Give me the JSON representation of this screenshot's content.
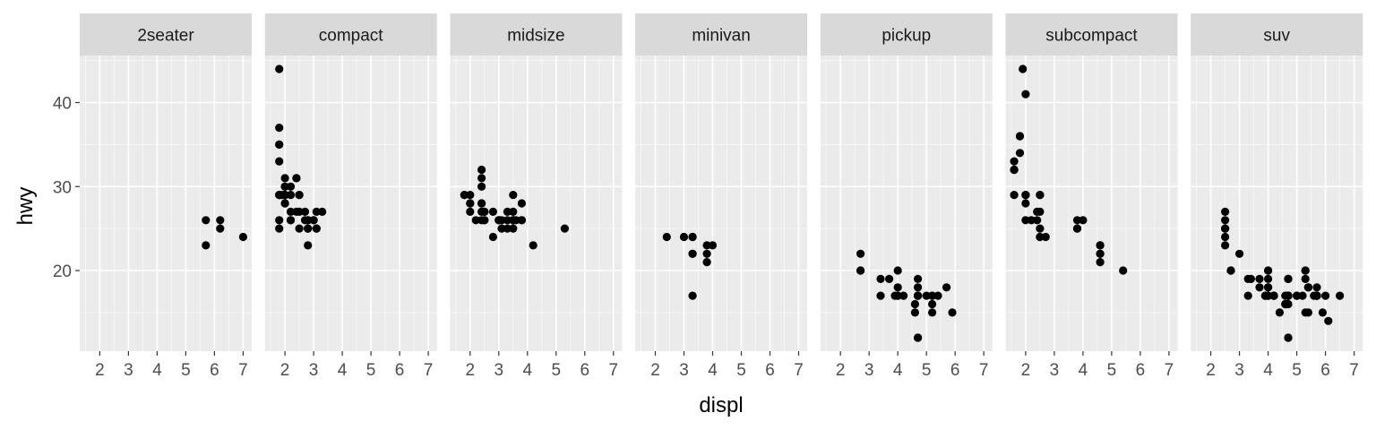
{
  "chart_data": {
    "type": "scatter",
    "xlabel": "displ",
    "ylabel": "hwy",
    "xlim": [
      1.3,
      7.3
    ],
    "ylim": [
      10.4,
      45.6
    ],
    "x_ticks": [
      2,
      3,
      4,
      5,
      6,
      7
    ],
    "y_ticks": [
      20,
      30,
      40
    ],
    "grid": true,
    "colors": {
      "panel": "#ebebeb",
      "strip": "#d9d9d9",
      "grid_major": "#ffffff",
      "point": "#000000",
      "tick_text": "#4d4d4d"
    },
    "facets": [
      {
        "label": "2seater",
        "points": [
          [
            5.7,
            26
          ],
          [
            5.7,
            23
          ],
          [
            6.2,
            26
          ],
          [
            6.2,
            25
          ],
          [
            7.0,
            24
          ]
        ]
      },
      {
        "label": "compact",
        "points": [
          [
            1.8,
            29
          ],
          [
            1.8,
            29
          ],
          [
            2.0,
            31
          ],
          [
            2.0,
            30
          ],
          [
            2.8,
            26
          ],
          [
            2.8,
            26
          ],
          [
            3.1,
            27
          ],
          [
            1.8,
            26
          ],
          [
            1.8,
            25
          ],
          [
            2.0,
            28
          ],
          [
            2.0,
            29
          ],
          [
            2.8,
            25
          ],
          [
            2.8,
            25
          ],
          [
            3.1,
            25
          ],
          [
            3.1,
            25
          ],
          [
            2.2,
            27
          ],
          [
            2.2,
            29
          ],
          [
            2.4,
            31
          ],
          [
            2.4,
            31
          ],
          [
            3.0,
            26
          ],
          [
            3.0,
            26
          ],
          [
            3.3,
            27
          ],
          [
            1.8,
            29
          ],
          [
            1.8,
            37
          ],
          [
            1.8,
            35
          ],
          [
            1.8,
            44
          ],
          [
            1.9,
            29
          ],
          [
            2.0,
            29
          ],
          [
            2.0,
            29
          ],
          [
            2.0,
            29
          ],
          [
            2.5,
            29
          ],
          [
            2.5,
            29
          ],
          [
            2.8,
            23
          ],
          [
            1.8,
            33
          ],
          [
            1.8,
            35
          ],
          [
            2.0,
            28
          ],
          [
            2.0,
            30
          ],
          [
            2.7,
            26
          ],
          [
            2.7,
            27
          ],
          [
            2.2,
            26
          ],
          [
            2.4,
            27
          ],
          [
            3.0,
            26
          ],
          [
            2.2,
            30
          ],
          [
            2.2,
            26
          ],
          [
            2.5,
            25
          ],
          [
            2.5,
            27
          ]
        ]
      },
      {
        "label": "midsize",
        "points": [
          [
            2.8,
            24
          ],
          [
            3.1,
            25
          ],
          [
            4.2,
            23
          ],
          [
            2.4,
            30
          ],
          [
            2.4,
            27
          ],
          [
            3.1,
            26
          ],
          [
            3.5,
            29
          ],
          [
            3.6,
            26
          ],
          [
            2.5,
            26
          ],
          [
            2.5,
            27
          ],
          [
            3.3,
            26
          ],
          [
            3.3,
            25
          ],
          [
            3.5,
            26
          ],
          [
            3.5,
            26
          ],
          [
            3.8,
            26
          ],
          [
            3.8,
            28
          ],
          [
            3.8,
            26
          ],
          [
            5.3,
            25
          ],
          [
            2.5,
            26
          ],
          [
            2.5,
            27
          ],
          [
            3.0,
            26
          ],
          [
            3.0,
            26
          ],
          [
            3.5,
            26
          ],
          [
            1.8,
            29
          ],
          [
            1.8,
            29
          ],
          [
            2.0,
            28
          ],
          [
            2.0,
            29
          ],
          [
            2.4,
            26
          ],
          [
            2.4,
            28
          ],
          [
            3.5,
            25
          ],
          [
            2.4,
            32
          ],
          [
            2.4,
            31
          ],
          [
            3.0,
            26
          ],
          [
            3.3,
            27
          ],
          [
            2.0,
            28
          ],
          [
            2.0,
            27
          ],
          [
            2.2,
            26
          ],
          [
            2.4,
            28
          ],
          [
            3.5,
            27
          ],
          [
            2.8,
            27
          ]
        ]
      },
      {
        "label": "minivan",
        "points": [
          [
            2.4,
            24
          ],
          [
            3.0,
            24
          ],
          [
            3.3,
            22
          ],
          [
            3.3,
            22
          ],
          [
            3.3,
            24
          ],
          [
            3.3,
            24
          ],
          [
            3.3,
            17
          ],
          [
            3.8,
            22
          ],
          [
            3.8,
            21
          ],
          [
            3.8,
            23
          ],
          [
            4.0,
            23
          ]
        ]
      },
      {
        "label": "pickup",
        "points": [
          [
            2.7,
            20
          ],
          [
            2.7,
            20
          ],
          [
            2.7,
            22
          ],
          [
            3.4,
            17
          ],
          [
            3.4,
            19
          ],
          [
            4.0,
            18
          ],
          [
            4.7,
            17
          ],
          [
            4.7,
            12
          ],
          [
            4.7,
            17
          ],
          [
            5.2,
            17
          ],
          [
            5.2,
            15
          ],
          [
            3.9,
            17
          ],
          [
            4.7,
            17
          ],
          [
            4.7,
            12
          ],
          [
            4.7,
            17
          ],
          [
            5.2,
            16
          ],
          [
            5.7,
            18
          ],
          [
            5.9,
            15
          ],
          [
            4.0,
            20
          ],
          [
            4.0,
            17
          ],
          [
            4.0,
            17
          ],
          [
            4.6,
            16
          ],
          [
            5.0,
            17
          ],
          [
            5.4,
            17
          ],
          [
            4.6,
            15
          ],
          [
            4.7,
            18
          ],
          [
            4.7,
            19
          ],
          [
            5.2,
            17
          ],
          [
            3.7,
            19
          ],
          [
            4.2,
            17
          ]
        ]
      },
      {
        "label": "subcompact",
        "points": [
          [
            3.8,
            26
          ],
          [
            3.8,
            25
          ],
          [
            4.0,
            26
          ],
          [
            4.6,
            23
          ],
          [
            4.6,
            22
          ],
          [
            4.6,
            23
          ],
          [
            4.6,
            22
          ],
          [
            5.4,
            20
          ],
          [
            1.6,
            33
          ],
          [
            1.6,
            32
          ],
          [
            1.6,
            32
          ],
          [
            1.6,
            29
          ],
          [
            1.6,
            32
          ],
          [
            1.8,
            34
          ],
          [
            1.8,
            36
          ],
          [
            1.8,
            36
          ],
          [
            2.0,
            29
          ],
          [
            2.4,
            26
          ],
          [
            2.4,
            27
          ],
          [
            2.5,
            25
          ],
          [
            2.5,
            27
          ],
          [
            2.5,
            29
          ],
          [
            2.5,
            29
          ],
          [
            1.9,
            44
          ],
          [
            2.0,
            41
          ],
          [
            2.0,
            29
          ],
          [
            2.0,
            26
          ],
          [
            2.0,
            28
          ],
          [
            2.0,
            29
          ],
          [
            2.5,
            24
          ],
          [
            3.8,
            25
          ],
          [
            4.6,
            21
          ],
          [
            2.5,
            24
          ],
          [
            2.2,
            26
          ],
          [
            2.7,
            24
          ]
        ]
      },
      {
        "label": "suv",
        "points": [
          [
            5.3,
            20
          ],
          [
            5.3,
            15
          ],
          [
            5.3,
            20
          ],
          [
            5.7,
            17
          ],
          [
            6.0,
            17
          ],
          [
            5.7,
            17
          ],
          [
            6.5,
            17
          ],
          [
            3.7,
            19
          ],
          [
            3.7,
            18
          ],
          [
            3.9,
            17
          ],
          [
            3.9,
            17
          ],
          [
            4.7,
            17
          ],
          [
            4.7,
            12
          ],
          [
            4.7,
            17
          ],
          [
            5.2,
            17
          ],
          [
            5.7,
            17
          ],
          [
            5.9,
            15
          ],
          [
            4.7,
            17
          ],
          [
            4.7,
            17
          ],
          [
            4.7,
            17
          ],
          [
            5.7,
            17
          ],
          [
            6.1,
            14
          ],
          [
            4.0,
            17
          ],
          [
            4.2,
            17
          ],
          [
            4.4,
            15
          ],
          [
            4.6,
            16
          ],
          [
            5.4,
            18
          ],
          [
            5.4,
            18
          ],
          [
            5.4,
            15
          ],
          [
            4.0,
            20
          ],
          [
            4.0,
            19
          ],
          [
            4.6,
            17
          ],
          [
            5.0,
            17
          ],
          [
            2.5,
            25
          ],
          [
            2.5,
            24
          ],
          [
            2.5,
            27
          ],
          [
            2.5,
            25
          ],
          [
            2.7,
            20
          ],
          [
            2.7,
            20
          ],
          [
            3.4,
            19
          ],
          [
            4.0,
            17
          ],
          [
            4.7,
            19
          ],
          [
            4.0,
            18
          ],
          [
            4.0,
            20
          ],
          [
            4.7,
            19
          ],
          [
            4.7,
            19
          ],
          [
            5.7,
            18
          ],
          [
            4.6,
            16
          ],
          [
            5.0,
            17
          ],
          [
            4.2,
            17
          ],
          [
            4.2,
            17
          ],
          [
            4.6,
            16
          ],
          [
            4.7,
            17
          ],
          [
            4.7,
            12
          ],
          [
            3.0,
            22
          ],
          [
            5.4,
            18
          ],
          [
            2.5,
            23
          ],
          [
            2.5,
            26
          ],
          [
            3.3,
            17
          ],
          [
            3.3,
            19
          ],
          [
            4.0,
            18
          ],
          [
            5.3,
            19
          ],
          [
            5.6,
            17
          ],
          [
            4.7,
            16
          ]
        ]
      }
    ]
  }
}
